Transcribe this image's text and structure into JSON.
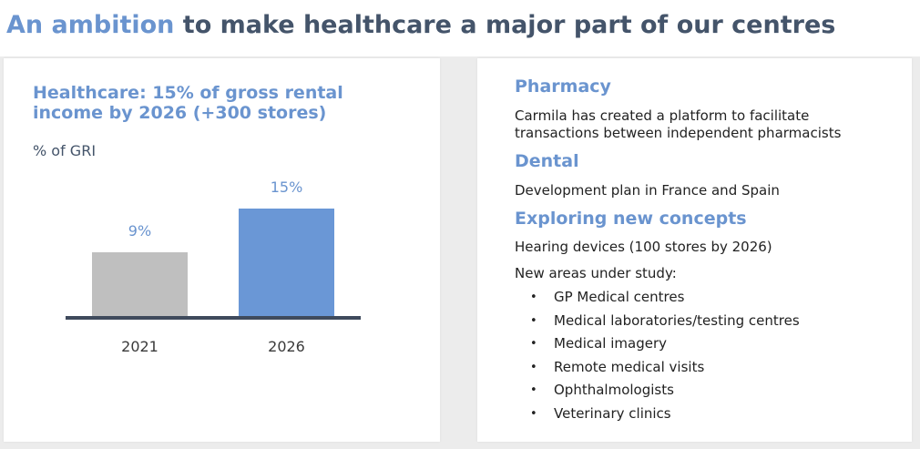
{
  "header": {
    "title_accent": "An ambition",
    "title_rest": "to make healthcare a major part of our centres"
  },
  "left_panel": {
    "chart_title": "Healthcare: 15% of gross rental income by 2026 (+300 stores)",
    "unit_label": "% of GRI"
  },
  "chart_data": {
    "type": "bar",
    "title": "Healthcare: 15% of gross rental income by 2026 (+300 stores)",
    "ylabel": "% of GRI",
    "xlabel": "",
    "categories": [
      "2021",
      "2026"
    ],
    "values": [
      9,
      15
    ],
    "data_labels": [
      "9%",
      "15%"
    ],
    "bar_colors": [
      "#bfbfbf",
      "#6a97d6"
    ],
    "label_color": "#6a94cf",
    "axis_color": "#3f4a5c",
    "ylim": [
      0,
      15
    ],
    "grid": false
  },
  "right_panel": {
    "sections": [
      {
        "title": "Pharmacy",
        "body": "Carmila has created a platform to facilitate transactions between independent pharmacists"
      },
      {
        "title": "Dental",
        "body": "Development plan in France and Spain"
      },
      {
        "title": "Exploring new concepts",
        "body": "Hearing devices (100 stores by 2026)",
        "body2": "New areas under study:"
      }
    ],
    "bullet_glyph": "•",
    "bullets": [
      "GP Medical centres",
      "Medical laboratories/testing centres",
      "Medical imagery",
      "Remote medical visits",
      "Ophthalmologists",
      "Veterinary clinics"
    ]
  },
  "colors": {
    "accent": "#6a94cf",
    "heading": "#44546a",
    "bar_2021": "#bfbfbf",
    "bar_2026": "#6a97d6"
  }
}
